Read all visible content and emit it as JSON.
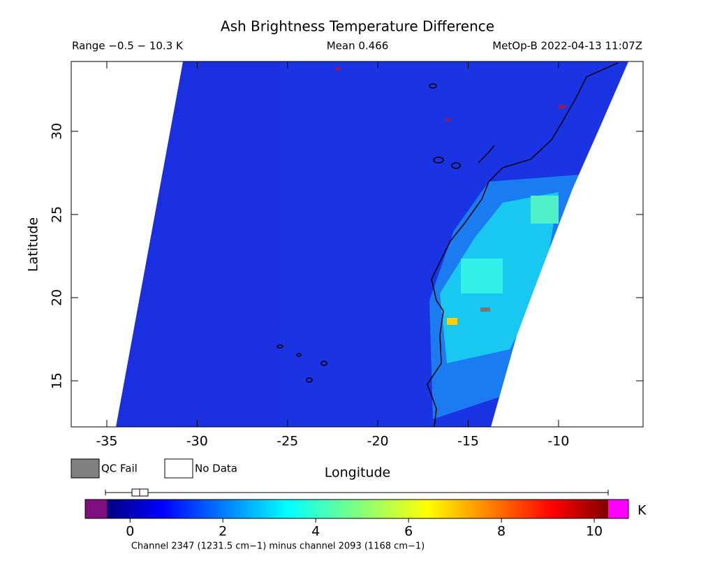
{
  "map": {
    "title": "Ash Brightness Temperature Difference",
    "range_text": "Range −0.5 − 10.3 K",
    "mean_text": "Mean 0.466",
    "satellite_text": "MetOp-B 2022-04-13 11:07Z",
    "xlabel": "Longitude",
    "ylabel": "Latitude",
    "xlim": [
      -36.97,
      -5.32
    ],
    "ylim": [
      12.23,
      34.2
    ],
    "xticks": [
      -35,
      -30,
      -25,
      -20,
      -15,
      -10
    ],
    "yticks": [
      15,
      20,
      25,
      30
    ],
    "legend": [
      "QC Fail",
      "No Data"
    ],
    "colorbar": {
      "lim": [
        -0.5,
        10.3
      ],
      "ticks": [
        0,
        2,
        4,
        6,
        8,
        10
      ],
      "unit": "K"
    },
    "footer": "Channel 2347 (1231.5 cm−1) minus channel 2093 (1168 cm−1)"
  }
}
